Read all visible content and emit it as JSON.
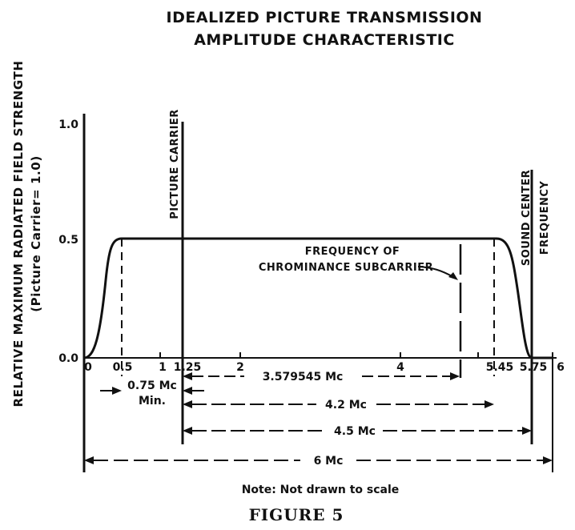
{
  "title_line1": "IDEALIZED PICTURE TRANSMISSION",
  "title_line2": "AMPLITUDE CHARACTERISTIC",
  "y_axis_label_line1": "RELATIVE MAXIMUM RADIATED FIELD STRENGTH",
  "y_axis_label_line2": "(Picture Carrier= 1.0)",
  "y_ticks": [
    "1.0",
    "0.5",
    "0.0"
  ],
  "x_ticks": [
    "0",
    "0.5",
    "1",
    "1.25",
    "2",
    "4",
    "5.45",
    "5.75",
    "6"
  ],
  "annotations": {
    "picture_carrier": "PICTURE CARRIER",
    "sound_center_line1": "SOUND CENTER",
    "sound_center_line2": "FREQUENCY",
    "chroma_line1": "FREQUENCY OF",
    "chroma_line2": "CHROMINANCE SUBCARRIER"
  },
  "dimensions": {
    "min_width_line1": "0.75 Mc",
    "min_width_line2": "Min.",
    "chroma_offset": "3.579545 Mc",
    "video_band": "4.2 Mc",
    "sound_offset": "4.5 Mc",
    "channel_width": "6 Mc"
  },
  "note": "Note: Not drawn to scale",
  "figure_label": "FIGURE 5"
}
